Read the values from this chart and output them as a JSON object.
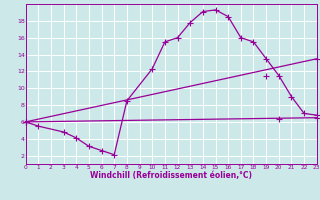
{
  "xlabel": "Windchill (Refroidissement éolien,°C)",
  "bg_color": "#cce8e8",
  "line_color": "#990099",
  "grid_color": "#ffffff",
  "xlim": [
    0,
    23
  ],
  "ylim": [
    1,
    20
  ],
  "xticks": [
    0,
    1,
    2,
    3,
    4,
    5,
    6,
    7,
    8,
    9,
    10,
    11,
    12,
    13,
    14,
    15,
    16,
    17,
    18,
    19,
    20,
    21,
    22,
    23
  ],
  "yticks": [
    2,
    4,
    6,
    8,
    10,
    12,
    14,
    16,
    18
  ],
  "line1_x": [
    0,
    1,
    3,
    4,
    5,
    6,
    7,
    8,
    10,
    11,
    12,
    13,
    14,
    15,
    16,
    17,
    18,
    19,
    20,
    21,
    22,
    23
  ],
  "line1_y": [
    6.0,
    5.5,
    4.8,
    4.1,
    3.1,
    2.6,
    2.1,
    8.5,
    12.3,
    15.5,
    16.0,
    17.8,
    19.1,
    19.3,
    18.5,
    16.0,
    15.5,
    13.5,
    11.5,
    9.0,
    7.0,
    6.8
  ],
  "line2_x": [
    0,
    23
  ],
  "line2_y": [
    6.0,
    13.5
  ],
  "line2_mid_x": [
    19
  ],
  "line2_mid_y": [
    11.5
  ],
  "line3_x": [
    0,
    23
  ],
  "line3_y": [
    6.0,
    6.5
  ],
  "line3_mid_x": [
    20
  ],
  "line3_mid_y": [
    6.3
  ],
  "markersize": 2.5,
  "linewidth": 0.9,
  "xlabel_fontsize": 5.5,
  "tick_labelsize": 4.5
}
